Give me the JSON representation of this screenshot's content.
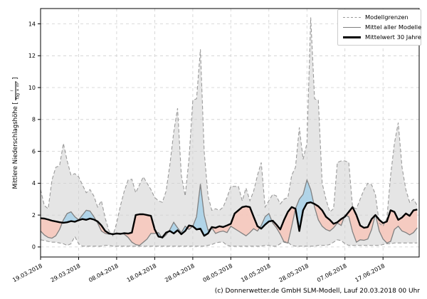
{
  "legend": {
    "items": [
      {
        "label": "Modellgrenzen"
      },
      {
        "label": "Mittel aller Modelle"
      },
      {
        "label": "Mittelwert 30 Jahre"
      }
    ]
  },
  "axis": {
    "ylabel_prefix": "Mittlere Niederschlagshöhe [",
    "unit_numerator": "l",
    "unit_denominator": "Tag × m²",
    "ylabel_suffix": "]"
  },
  "footer": {
    "credit": "(c) Donnerwetter.de GmbH SLM-Modell, Lauf 20.03.2018 00 Uhr"
  },
  "chart_data": {
    "type": "line",
    "title": "",
    "ylabel": "Mittlere Niederschlagshöhe [l/(Tag × m²)]",
    "xlabel": "",
    "grid": true,
    "legend_position": "upper right",
    "ylim": [
      -0.63,
      14.96
    ],
    "yticks": [
      0,
      2,
      4,
      6,
      8,
      10,
      12,
      14
    ],
    "x_unit": "days since 19.03.2018",
    "xlim": [
      0,
      99.5
    ],
    "x_tick_days": [
      0,
      10,
      20,
      30,
      40,
      50,
      60,
      70,
      80,
      90
    ],
    "x_tick_labels": [
      "19.03.2018",
      "29.03.2018",
      "08.04.2018",
      "18.04.2018",
      "28.04.2018",
      "08.05.2018",
      "18.05.2018",
      "28.05.2018",
      "07.06.2018",
      "17.06.2018"
    ],
    "colors": {
      "band_fill": "#cfcfcf",
      "band_edge": "#9a9a9a",
      "above_fill": "#aad2e8",
      "below_fill": "#f6c8bd",
      "model_mean_line": "#808080",
      "climate_mean_line": "#000000",
      "grid": "#cfcfcf"
    },
    "series": [
      {
        "name": "Modellgrenze oben",
        "style": "dashed-gray",
        "values": [
          3.6,
          2.6,
          2.4,
          4.2,
          5.0,
          5.1,
          6.5,
          5.4,
          4.5,
          4.6,
          4.4,
          3.9,
          3.4,
          3.6,
          3.2,
          2.5,
          2.9,
          1.8,
          1.0,
          0.7,
          1.5,
          2.6,
          3.5,
          4.2,
          4.25,
          3.4,
          3.9,
          4.4,
          4.0,
          3.6,
          3.1,
          2.9,
          2.8,
          3.5,
          5.2,
          7.2,
          8.7,
          4.5,
          3.2,
          5.5,
          9.2,
          9.3,
          12.4,
          6.0,
          3.2,
          2.3,
          2.4,
          2.3,
          2.5,
          3.1,
          3.8,
          3.8,
          3.8,
          2.9,
          3.7,
          2.9,
          3.5,
          4.5,
          5.3,
          2.5,
          2.9,
          3.3,
          3.2,
          2.7,
          3.0,
          3.1,
          4.5,
          5.0,
          7.5,
          5.5,
          6.5,
          14.4,
          9.3,
          9.2,
          4.0,
          3.0,
          2.2,
          2.4,
          5.3,
          5.4,
          5.4,
          5.3,
          2.5,
          2.4,
          3.0,
          3.6,
          4.0,
          3.9,
          3.3,
          1.5,
          1.3,
          1.8,
          4.5,
          6.5,
          7.8,
          5.0,
          3.6,
          2.8,
          3.0,
          2.6
        ]
      },
      {
        "name": "Modellgrenze unten",
        "style": "dashed-gray",
        "values": [
          0.45,
          0.4,
          0.35,
          0.3,
          0.3,
          0.25,
          0.2,
          0.1,
          0.2,
          0.65,
          0.2,
          0.05,
          0.05,
          0.05,
          0.05,
          0.05,
          0.05,
          0.1,
          0.1,
          0.05,
          0.05,
          0.05,
          0.05,
          0.05,
          0.05,
          0.05,
          0.05,
          0.05,
          0.05,
          0.05,
          0.05,
          0.05,
          0.05,
          0.05,
          0.05,
          0.05,
          0.05,
          0.05,
          0.05,
          0.05,
          0.05,
          0.05,
          0.05,
          0.05,
          0.1,
          0.15,
          0.25,
          0.3,
          0.3,
          0.1,
          0.05,
          0.05,
          0.05,
          0.05,
          0.05,
          0.05,
          0.05,
          0.05,
          0.05,
          0.1,
          0.1,
          0.05,
          0.05,
          0.2,
          0.35,
          0.3,
          0.1,
          0.05,
          0.05,
          0.05,
          0.05,
          0.05,
          0.05,
          0.1,
          0.1,
          0.1,
          0.15,
          0.3,
          0.45,
          0.4,
          0.2,
          0.1,
          0.1,
          0.1,
          0.1,
          0.1,
          0.1,
          0.1,
          0.1,
          0.1,
          0.15,
          0.2,
          0.2,
          0.25,
          0.25,
          0.25,
          0.25,
          0.25,
          0.25,
          0.25
        ]
      },
      {
        "name": "Mittel aller Modelle",
        "style": "solid-gray",
        "values": [
          1.0,
          0.75,
          0.6,
          0.55,
          0.7,
          1.1,
          1.7,
          2.1,
          2.2,
          1.9,
          1.7,
          2.0,
          2.3,
          2.25,
          1.9,
          1.5,
          1.0,
          0.85,
          0.8,
          0.85,
          0.8,
          0.85,
          0.8,
          0.6,
          0.3,
          0.15,
          0.1,
          0.3,
          0.5,
          0.85,
          0.85,
          0.9,
          0.55,
          0.75,
          1.1,
          1.55,
          1.2,
          0.9,
          1.3,
          1.1,
          1.3,
          1.9,
          3.95,
          2.0,
          1.05,
          1.2,
          0.85,
          0.95,
          1.0,
          0.9,
          1.3,
          1.15,
          1.0,
          0.85,
          0.7,
          0.9,
          1.15,
          1.0,
          1.35,
          1.9,
          2.1,
          1.5,
          1.2,
          0.8,
          0.3,
          0.25,
          1.3,
          2.4,
          3.0,
          3.3,
          4.2,
          3.6,
          2.5,
          1.7,
          1.3,
          1.1,
          1.0,
          1.2,
          1.5,
          1.35,
          2.0,
          1.9,
          0.95,
          0.3,
          0.45,
          0.42,
          0.5,
          1.1,
          2.05,
          1.0,
          0.5,
          0.25,
          0.35,
          1.1,
          1.3,
          1.0,
          0.9,
          0.76,
          0.9,
          1.2
        ]
      },
      {
        "name": "Mittelwert 30 Jahre",
        "style": "thick-black",
        "values": [
          1.8,
          1.78,
          1.72,
          1.65,
          1.6,
          1.55,
          1.52,
          1.55,
          1.62,
          1.58,
          1.68,
          1.75,
          1.7,
          1.78,
          1.72,
          1.6,
          1.35,
          1.0,
          0.85,
          0.8,
          0.85,
          0.82,
          0.86,
          0.84,
          0.9,
          2.0,
          2.05,
          2.05,
          2.0,
          1.95,
          1.1,
          0.65,
          0.6,
          0.9,
          1.0,
          0.85,
          1.05,
          0.8,
          1.0,
          1.35,
          1.3,
          1.1,
          1.15,
          0.7,
          0.85,
          1.25,
          1.2,
          1.3,
          1.25,
          1.35,
          1.45,
          2.1,
          2.3,
          2.5,
          2.55,
          2.5,
          1.9,
          1.3,
          1.15,
          1.4,
          1.6,
          1.65,
          1.4,
          1.1,
          1.7,
          2.2,
          2.5,
          2.4,
          1.0,
          2.3,
          2.75,
          2.8,
          2.7,
          2.55,
          2.3,
          1.9,
          1.7,
          1.45,
          1.55,
          1.75,
          1.9,
          2.2,
          2.5,
          2.0,
          1.35,
          1.2,
          1.25,
          1.75,
          2.0,
          1.7,
          1.5,
          1.6,
          2.3,
          2.2,
          1.7,
          1.85,
          2.1,
          1.95,
          2.3,
          2.35
        ]
      }
    ]
  }
}
